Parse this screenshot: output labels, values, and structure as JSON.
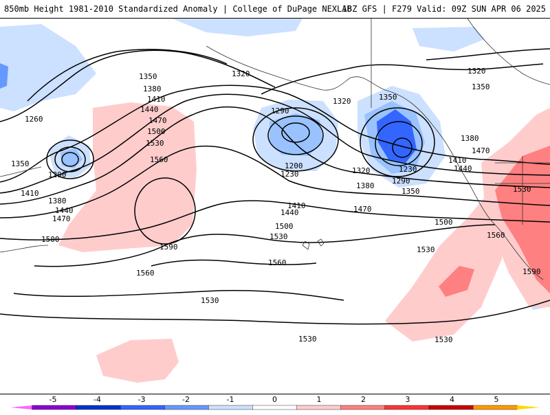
{
  "header": {
    "left_title": "850mb Height 1981-2010 Standardized Anomaly | College of DuPage NEXLAB",
    "right_title": "18Z GFS | F279 Valid: 09Z SUN APR 06 2025"
  },
  "contour_labels": [
    "1350",
    "1380",
    "1410",
    "1440",
    "1470",
    "1500",
    "1530",
    "1560",
    "1590",
    "1320",
    "1290",
    "1260",
    "1230",
    "1200"
  ],
  "colorbar": {
    "ticks": [
      "-5",
      "-4",
      "-3",
      "-2",
      "-1",
      "0",
      "1",
      "2",
      "3",
      "4",
      "5"
    ],
    "colors": [
      "#ff66ff",
      "#8a00d4",
      "#0033cc",
      "#3366ff",
      "#6699ff",
      "#cce0ff",
      "#ffffff",
      "#ffcccc",
      "#ff8080",
      "#ff3333",
      "#cc0000",
      "#ff9900",
      "#ffd700"
    ]
  }
}
